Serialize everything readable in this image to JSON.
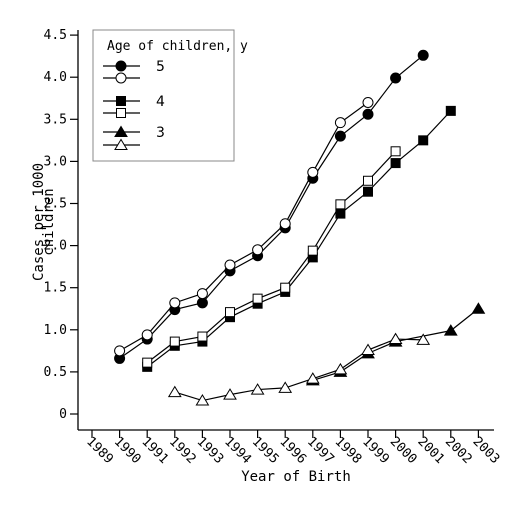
{
  "chart_data": {
    "type": "line",
    "title": "",
    "xlabel": "Year of Birth",
    "ylabel": "Cases per 1000 children",
    "ylabel_parts": [
      "Cases per 1000",
      "children"
    ],
    "ylim": [
      0,
      4.5
    ],
    "xlim": [
      1989,
      2003
    ],
    "y_ticks": [
      "0",
      "0.5",
      "1.0",
      "1.5",
      "2.0",
      "2.5",
      "3.0",
      "3.5",
      "4.0",
      "4.5"
    ],
    "x_ticks": [
      "1989",
      "1990",
      "1991",
      "1992",
      "1993",
      "1994",
      "1995",
      "1996",
      "1997",
      "1998",
      "1999",
      "2000",
      "2001",
      "2002",
      "2003"
    ],
    "grid": false,
    "legend": {
      "title": "Age of children, y",
      "placement": "top-left",
      "entries": [
        {
          "label": "5",
          "markers": [
            "filled-circle",
            "open-circle"
          ]
        },
        {
          "label": "4",
          "markers": [
            "filled-square",
            "open-square"
          ]
        },
        {
          "label": "3",
          "markers": [
            "filled-triangle",
            "open-triangle"
          ]
        }
      ]
    },
    "series": [
      {
        "age": "5",
        "marker": "circle",
        "fill": "filled",
        "x": [
          1990,
          1991,
          1992,
          1993,
          1994,
          1995,
          1996,
          1997,
          1998,
          1999,
          2000,
          2001
        ],
        "y": [
          0.66,
          0.89,
          1.24,
          1.32,
          1.7,
          1.88,
          2.21,
          2.8,
          3.3,
          3.56,
          3.99,
          4.26
        ]
      },
      {
        "age": "5",
        "marker": "circle",
        "fill": "open",
        "x": [
          1990,
          1991,
          1992,
          1993,
          1994,
          1995,
          1996,
          1997,
          1998,
          1999
        ],
        "y": [
          0.75,
          0.94,
          1.32,
          1.43,
          1.77,
          1.95,
          2.26,
          2.87,
          3.46,
          3.7
        ]
      },
      {
        "age": "4",
        "marker": "square",
        "fill": "filled",
        "x": [
          1991,
          1992,
          1993,
          1994,
          1995,
          1996,
          1997,
          1998,
          1999,
          2000,
          2001,
          2002
        ],
        "y": [
          0.56,
          0.81,
          0.86,
          1.15,
          1.31,
          1.45,
          1.86,
          2.38,
          2.64,
          2.98,
          3.25,
          3.6
        ]
      },
      {
        "age": "4",
        "marker": "square",
        "fill": "open",
        "x": [
          1991,
          1992,
          1993,
          1994,
          1995,
          1996,
          1997,
          1998,
          1999,
          2000
        ],
        "y": [
          0.61,
          0.86,
          0.92,
          1.21,
          1.37,
          1.5,
          1.94,
          2.49,
          2.77,
          3.12
        ]
      },
      {
        "age": "3",
        "marker": "triangle",
        "fill": "filled",
        "x": [
          1997,
          1998,
          1999,
          2000,
          2002,
          2003
        ],
        "y": [
          0.4,
          0.5,
          0.72,
          0.86,
          0.99,
          1.25
        ]
      },
      {
        "age": "3",
        "marker": "triangle",
        "fill": "open",
        "x": [
          1992,
          1993,
          1994,
          1995,
          1996,
          1997,
          1998,
          1999,
          2000,
          2001
        ],
        "y": [
          0.26,
          0.16,
          0.23,
          0.29,
          0.31,
          0.42,
          0.53,
          0.76,
          0.89,
          0.88
        ]
      }
    ]
  }
}
